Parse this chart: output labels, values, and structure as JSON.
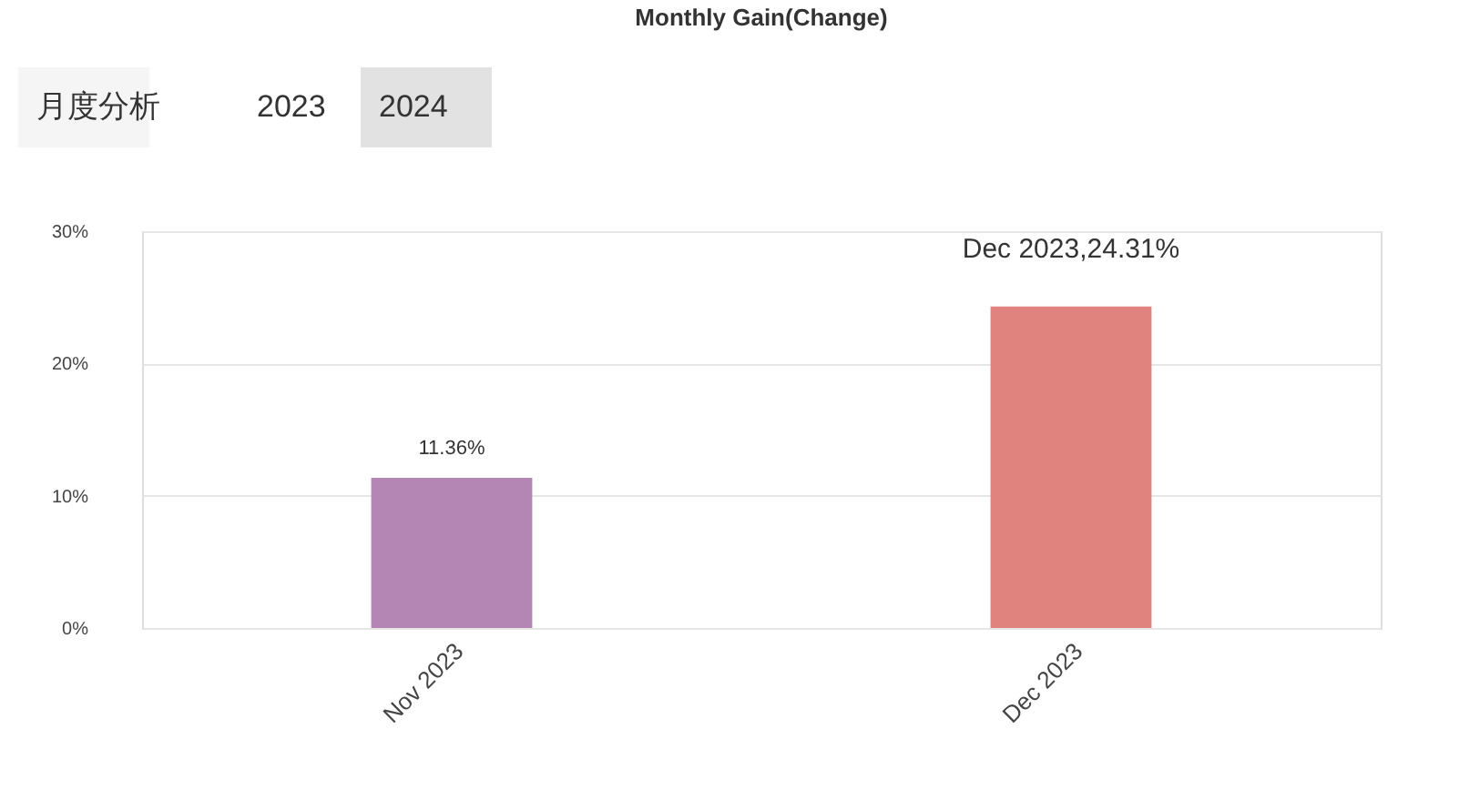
{
  "chart_data": {
    "type": "bar",
    "title": "Monthly Gain(Change)",
    "categories": [
      "Nov 2023",
      "Dec 2023"
    ],
    "values": [
      11.36,
      24.31
    ],
    "colors": [
      "#b386b3",
      "#e0837f"
    ],
    "value_labels": [
      "11.36%",
      null
    ],
    "ylim": [
      0,
      30
    ],
    "yticks": [
      {
        "value": 0,
        "label": "0%"
      },
      {
        "value": 10,
        "label": "10%"
      },
      {
        "value": 20,
        "label": "20%"
      },
      {
        "value": 30,
        "label": "30%"
      }
    ],
    "grid": "y",
    "annotations": [
      "月度分析",
      "2023",
      "2024",
      {
        "text": "Dec 2023,24.31%",
        "x": "Dec 2023",
        "y": 24.31
      }
    ]
  }
}
